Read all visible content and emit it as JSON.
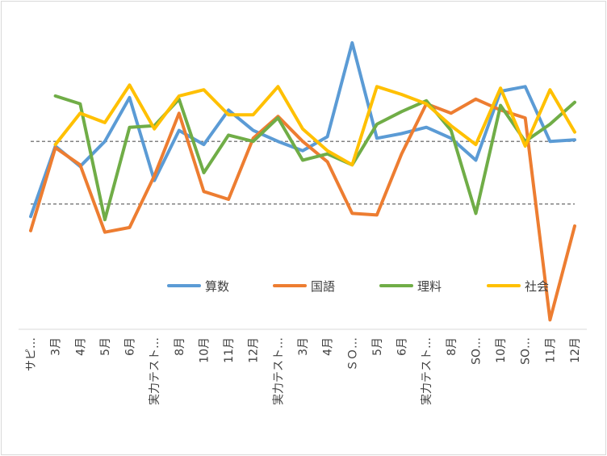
{
  "chart_data": {
    "type": "line",
    "categories": [
      "サピ…",
      "3月",
      "4月",
      "5月",
      "6月",
      "実力テスト…",
      "8月",
      "10月",
      "11月",
      "12月",
      "実力テスト…",
      "3月",
      "4月",
      "ＳＯ…",
      "5月",
      "6月",
      "実力テスト…",
      "8月",
      "SO…",
      "10月",
      "SO…",
      "11月",
      "12月"
    ],
    "series": [
      {
        "name": "算数",
        "color": "#5B9BD5",
        "values": [
          52,
          97,
          84,
          100,
          128,
          75,
          107,
          98,
          120,
          107,
          100,
          94,
          103,
          163,
          102,
          105,
          109,
          102,
          88,
          132,
          135,
          100,
          101
        ]
      },
      {
        "name": "国語",
        "color": "#ED7D31",
        "values": [
          43,
          96,
          85,
          42,
          45,
          78,
          118,
          68,
          63,
          102,
          116,
          100,
          87,
          54,
          53,
          92,
          124,
          118,
          127,
          120,
          115,
          -14,
          46
        ]
      },
      {
        "name": "理料",
        "color": "#70AD47",
        "values": [
          null,
          129,
          124,
          50,
          109,
          110,
          127,
          80,
          104,
          100,
          115,
          88,
          92,
          85,
          111,
          119,
          126,
          107,
          54,
          123,
          100,
          111,
          125
        ]
      },
      {
        "name": "社会",
        "color": "#FFC000",
        "values": [
          null,
          98,
          118,
          112,
          136,
          108,
          129,
          133,
          117,
          117,
          135,
          108,
          94,
          85,
          135,
          130,
          124,
          110,
          98,
          134,
          97,
          133,
          106
        ]
      }
    ],
    "reference_lines": [
      100,
      60
    ],
    "ylim": [
      -20,
      180
    ],
    "grid": false,
    "legend_position": "inside-bottom"
  }
}
